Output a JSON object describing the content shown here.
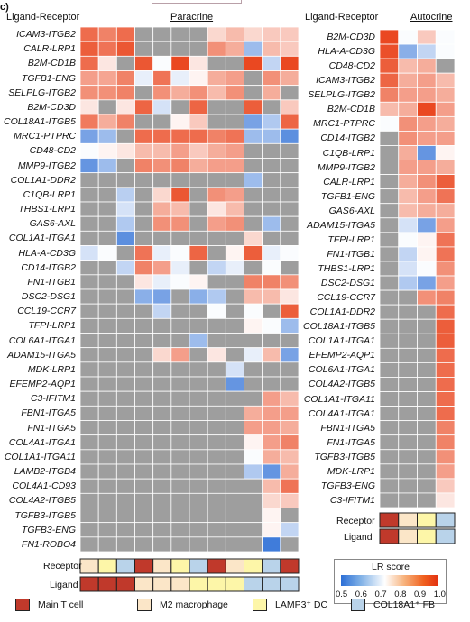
{
  "panel_label": "c)",
  "left_header": "Ligand-Receptor",
  "left_title": "Paracrine",
  "right_header": "Ligand-Receptor",
  "right_title": "Autocrine",
  "receptor_label": "Receptor",
  "ligand_label": "Ligand",
  "lr_score_title": "LR score",
  "lr_ticks": [
    "0.5",
    "0.6",
    "0.7",
    "0.8",
    "0.9",
    "1.0"
  ],
  "cell_types": [
    {
      "name": "Main T cell",
      "color": "#c0392b"
    },
    {
      "name": "M2 macrophage",
      "color": "#fbe6c8"
    },
    {
      "name": "LAMP3⁺ DC",
      "color": "#fdf6a8"
    },
    {
      "name": "COL18A1⁺ FB",
      "color": "#b9d3ea"
    }
  ],
  "colors": {
    "na": "#9e9e9e",
    "low": "#2d6fd6",
    "mid": "#ffffff",
    "high": "#e83a10"
  },
  "chart_data": [
    {
      "type": "heatmap",
      "title": "Paracrine",
      "ylabel": "Ligand-Receptor",
      "value_range": [
        0.5,
        1.0
      ],
      "rows": [
        "ICAM3-ITGB2",
        "CALR-LRP1",
        "B2M-CD1B",
        "TGFB1-ENG",
        "SELPLG-ITGB2",
        "B2M-CD3D",
        "COL18A1-ITGB5",
        "MRC1-PTPRC",
        "CD48-CD2",
        "MMP9-ITGB2",
        "COL1A1-DDR2",
        "C1QB-LRP1",
        "THBS1-LRP1",
        "GAS6-AXL",
        "COL1A1-ITGA1",
        "HLA-A-CD3G",
        "CD14-ITGB2",
        "FN1-ITGB1",
        "DSC2-DSG1",
        "CCL19-CCR7",
        "TFPI-LRP1",
        "COL6A1-ITGA1",
        "ADAM15-ITGA5",
        "MDK-LRP1",
        "EFEMP2-AQP1",
        "C3-IFITM1",
        "FBN1-ITGA5",
        "FN1-ITGA5",
        "COL4A1-ITGA1",
        "COL1A1-ITGA11",
        "LAMB2-ITGB4",
        "COL4A1-CD93",
        "COL4A2-ITGB5",
        "TGFB3-ITGB5",
        "TGFB3-ENG",
        "FN1-ROBO4"
      ],
      "receptor_types": [
        1,
        2,
        3,
        0,
        1,
        2,
        3,
        0,
        1,
        2,
        3,
        0
      ],
      "ligand_types": [
        0,
        0,
        0,
        1,
        1,
        1,
        2,
        2,
        2,
        3,
        3,
        3
      ],
      "values": [
        [
          0.93,
          0.9,
          0.93,
          null,
          null,
          null,
          null,
          0.78,
          0.82,
          0.78,
          0.8,
          0.8
        ],
        [
          0.95,
          0.92,
          0.96,
          null,
          null,
          null,
          null,
          0.88,
          0.84,
          0.62,
          0.82,
          0.8
        ],
        [
          0.93,
          0.76,
          null,
          0.96,
          0.72,
          0.98,
          0.76,
          null,
          null,
          0.98,
          0.66,
          0.98
        ],
        [
          0.86,
          0.85,
          0.9,
          0.7,
          0.92,
          0.7,
          0.74,
          0.84,
          0.86,
          null,
          0.88,
          0.84
        ],
        [
          0.88,
          0.88,
          0.9,
          null,
          0.88,
          0.84,
          0.88,
          0.82,
          0.88,
          null,
          0.84,
          null
        ],
        [
          0.76,
          null,
          0.76,
          0.94,
          0.68,
          null,
          0.94,
          null,
          null,
          0.95,
          null,
          0.8
        ],
        [
          0.91,
          0.84,
          0.9,
          null,
          null,
          0.74,
          0.8,
          null,
          null,
          0.58,
          0.64,
          0.94
        ],
        [
          0.58,
          0.62,
          null,
          0.93,
          0.93,
          0.93,
          0.93,
          0.9,
          0.92,
          0.62,
          0.62,
          0.55
        ],
        [
          0.72,
          0.74,
          0.76,
          0.82,
          0.82,
          0.86,
          0.8,
          0.84,
          0.86,
          null,
          null,
          null
        ],
        [
          0.56,
          0.62,
          null,
          0.9,
          0.88,
          0.9,
          0.84,
          0.86,
          0.86,
          null,
          null,
          null
        ],
        [
          null,
          null,
          null,
          null,
          null,
          null,
          null,
          null,
          null,
          0.62,
          null,
          null
        ],
        [
          null,
          null,
          0.65,
          null,
          0.78,
          0.96,
          null,
          0.88,
          0.86,
          null,
          null,
          null
        ],
        [
          null,
          null,
          0.68,
          null,
          0.84,
          0.82,
          null,
          0.76,
          0.82,
          null,
          null,
          null
        ],
        [
          null,
          null,
          0.64,
          null,
          0.88,
          0.88,
          null,
          0.86,
          0.88,
          null,
          0.62,
          null
        ],
        [
          null,
          null,
          0.55,
          null,
          null,
          null,
          null,
          null,
          null,
          0.78,
          null,
          null
        ],
        [
          0.68,
          0.72,
          null,
          0.92,
          0.7,
          0.72,
          0.94,
          null,
          0.74,
          0.95,
          0.7,
          0.72
        ],
        [
          null,
          null,
          0.66,
          0.9,
          0.86,
          0.7,
          null,
          0.66,
          0.7,
          null,
          0.72,
          null
        ],
        [
          null,
          null,
          null,
          0.76,
          0.7,
          0.72,
          0.74,
          null,
          null,
          0.9,
          0.9,
          0.88
        ],
        [
          null,
          null,
          null,
          0.6,
          0.58,
          null,
          0.6,
          0.64,
          null,
          0.82,
          0.82,
          0.76
        ],
        [
          null,
          null,
          null,
          null,
          0.66,
          null,
          null,
          0.72,
          null,
          0.72,
          null,
          0.95
        ],
        [
          null,
          null,
          null,
          null,
          null,
          null,
          null,
          null,
          null,
          0.74,
          0.72,
          0.62
        ],
        [
          null,
          null,
          null,
          null,
          null,
          null,
          0.62,
          null,
          null,
          null,
          null,
          null
        ],
        [
          null,
          null,
          null,
          null,
          0.78,
          0.86,
          null,
          0.76,
          null,
          0.7,
          0.82,
          0.58
        ],
        [
          null,
          null,
          null,
          null,
          null,
          null,
          null,
          null,
          0.68,
          null,
          null,
          null
        ],
        [
          null,
          null,
          null,
          null,
          null,
          null,
          null,
          null,
          0.56,
          null,
          null,
          null
        ],
        [
          null,
          null,
          null,
          null,
          null,
          null,
          null,
          null,
          null,
          null,
          0.86,
          0.82
        ],
        [
          null,
          null,
          null,
          null,
          null,
          null,
          null,
          null,
          null,
          0.84,
          0.86,
          0.86
        ],
        [
          null,
          null,
          null,
          null,
          null,
          null,
          null,
          null,
          null,
          0.86,
          0.86,
          0.84
        ],
        [
          null,
          null,
          null,
          null,
          null,
          null,
          null,
          null,
          null,
          0.74,
          0.86,
          0.9
        ],
        [
          null,
          null,
          null,
          null,
          null,
          null,
          null,
          null,
          null,
          0.72,
          0.84,
          0.82
        ],
        [
          null,
          null,
          null,
          null,
          null,
          null,
          null,
          null,
          null,
          0.64,
          0.56,
          0.84
        ],
        [
          null,
          null,
          null,
          null,
          null,
          null,
          null,
          null,
          null,
          null,
          0.82,
          0.92
        ],
        [
          null,
          null,
          null,
          null,
          null,
          null,
          null,
          null,
          null,
          null,
          0.78,
          0.8
        ],
        [
          null,
          null,
          null,
          null,
          null,
          null,
          null,
          null,
          null,
          null,
          0.74,
          null
        ],
        [
          null,
          null,
          null,
          null,
          null,
          null,
          null,
          null,
          null,
          null,
          0.74,
          0.66
        ],
        [
          null,
          null,
          null,
          null,
          null,
          null,
          null,
          null,
          null,
          null,
          0.52,
          null
        ]
      ]
    },
    {
      "type": "heatmap",
      "title": "Autocrine",
      "ylabel": "Ligand-Receptor",
      "value_range": [
        0.5,
        1.0
      ],
      "rows": [
        "B2M-CD3D",
        "HLA-A-CD3G",
        "CD48-CD2",
        "ICAM3-ITGB2",
        "SELPLG-ITGB2",
        "B2M-CD1B",
        "MRC1-PTPRC",
        "CD14-ITGB2",
        "C1QB-LRP1",
        "MMP9-ITGB2",
        "CALR-LRP1",
        "TGFB1-ENG",
        "GAS6-AXL",
        "ADAM15-ITGA5",
        "TFPI-LRP1",
        "FN1-ITGB1",
        "THBS1-LRP1",
        "DSC2-DSG1",
        "CCL19-CCR7",
        "COL1A1-DDR2",
        "COL18A1-ITGB5",
        "COL1A1-ITGA1",
        "EFEMP2-AQP1",
        "COL6A1-ITGA1",
        "COL4A2-ITGB5",
        "COL1A1-ITGA11",
        "COL4A1-ITGA1",
        "FBN1-ITGA5",
        "FN1-ITGA5",
        "TGFB3-ITGB5",
        "MDK-LRP1",
        "TGFB3-ENG",
        "C3-IFITM1"
      ],
      "receptor_types": [
        0,
        1,
        2,
        3
      ],
      "ligand_types": [
        0,
        1,
        2,
        3
      ],
      "values": [
        [
          0.98,
          0.72,
          0.8,
          0.72
        ],
        [
          0.97,
          0.6,
          0.66,
          0.72
        ],
        [
          0.95,
          0.82,
          0.84,
          null
        ],
        [
          0.94,
          0.84,
          0.86,
          0.82
        ],
        [
          0.9,
          0.86,
          0.86,
          0.84
        ],
        [
          0.82,
          0.84,
          0.98,
          0.86
        ],
        [
          0.72,
          0.88,
          0.86,
          0.84
        ],
        [
          null,
          0.88,
          0.86,
          0.86
        ],
        [
          null,
          0.84,
          0.56,
          0.74
        ],
        [
          null,
          0.86,
          0.86,
          0.84
        ],
        [
          null,
          0.84,
          0.88,
          0.95
        ],
        [
          null,
          0.82,
          0.86,
          0.92
        ],
        [
          null,
          0.82,
          0.84,
          0.84
        ],
        [
          null,
          0.68,
          0.58,
          0.86
        ],
        [
          null,
          0.72,
          0.74,
          0.92
        ],
        [
          null,
          0.66,
          0.74,
          0.92
        ],
        [
          null,
          0.68,
          0.72,
          0.88
        ],
        [
          null,
          0.64,
          0.58,
          0.86
        ],
        [
          null,
          null,
          0.88,
          0.9
        ],
        [
          null,
          null,
          null,
          0.93
        ],
        [
          null,
          null,
          null,
          0.95
        ],
        [
          null,
          null,
          null,
          0.95
        ],
        [
          null,
          null,
          null,
          0.93
        ],
        [
          null,
          null,
          null,
          0.93
        ],
        [
          null,
          null,
          null,
          0.93
        ],
        [
          null,
          null,
          null,
          0.93
        ],
        [
          null,
          null,
          null,
          0.93
        ],
        [
          null,
          null,
          null,
          0.9
        ],
        [
          null,
          null,
          null,
          0.9
        ],
        [
          null,
          null,
          null,
          0.88
        ],
        [
          null,
          null,
          null,
          0.86
        ],
        [
          null,
          null,
          null,
          0.8
        ],
        [
          null,
          null,
          null,
          0.76
        ]
      ]
    }
  ]
}
